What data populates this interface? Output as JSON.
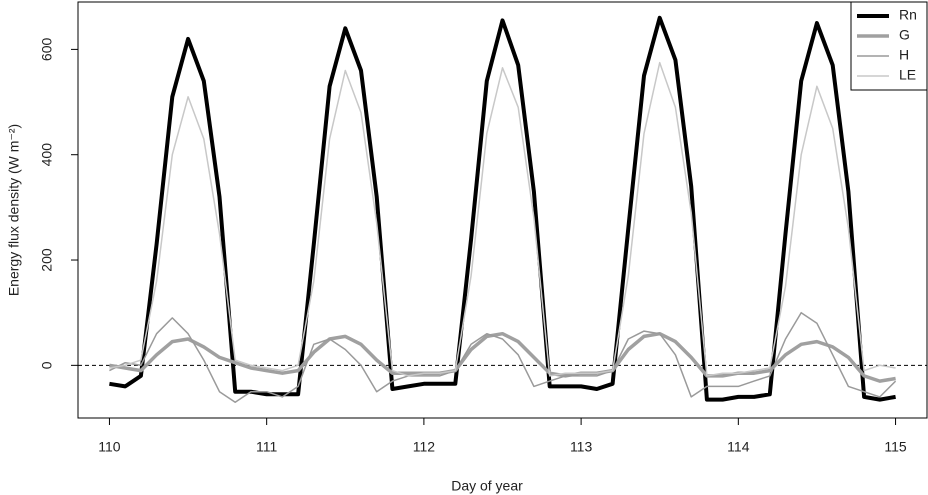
{
  "chart_data": {
    "type": "line",
    "x_label": "Day of year",
    "y_label": "Energy flux density (W m⁻²)",
    "x": [
      110.0,
      110.1,
      110.2,
      110.3,
      110.4,
      110.5,
      110.6,
      110.7,
      110.8,
      110.9,
      111.0,
      111.1,
      111.2,
      111.3,
      111.4,
      111.5,
      111.6,
      111.7,
      111.8,
      111.9,
      112.0,
      112.1,
      112.2,
      112.3,
      112.4,
      112.5,
      112.6,
      112.7,
      112.8,
      112.9,
      113.0,
      113.1,
      113.2,
      113.3,
      113.4,
      113.5,
      113.6,
      113.7,
      113.8,
      113.9,
      114.0,
      114.1,
      114.2,
      114.3,
      114.4,
      114.5,
      114.6,
      114.7,
      114.8,
      114.9,
      115.0
    ],
    "series": [
      {
        "name": "Rn",
        "color": "#000000",
        "values": [
          -35,
          -40,
          -20,
          230,
          510,
          620,
          540,
          320,
          -50,
          -50,
          -55,
          -55,
          -55,
          230,
          530,
          640,
          560,
          320,
          -45,
          -40,
          -35,
          -35,
          -35,
          240,
          540,
          655,
          570,
          330,
          -40,
          -40,
          -40,
          -45,
          -35,
          260,
          550,
          660,
          580,
          340,
          -65,
          -65,
          -60,
          -60,
          -55,
          250,
          540,
          650,
          570,
          330,
          -60,
          -65,
          -60
        ]
      },
      {
        "name": "G",
        "color": "#a0a0a0",
        "values": [
          0,
          -5,
          -10,
          20,
          45,
          50,
          35,
          15,
          5,
          -5,
          -10,
          -15,
          -10,
          25,
          50,
          55,
          40,
          10,
          -15,
          -15,
          -15,
          -15,
          -10,
          30,
          55,
          60,
          45,
          15,
          -15,
          -20,
          -15,
          -15,
          -10,
          30,
          55,
          60,
          45,
          15,
          -20,
          -20,
          -15,
          -15,
          -10,
          20,
          40,
          45,
          35,
          15,
          -20,
          -30,
          -25
        ]
      },
      {
        "name": "H",
        "color": "#9a9a9a",
        "values": [
          -10,
          5,
          0,
          60,
          90,
          60,
          10,
          -50,
          -70,
          -50,
          -50,
          -60,
          -40,
          40,
          50,
          30,
          0,
          -50,
          -30,
          -20,
          -20,
          -20,
          -10,
          40,
          60,
          50,
          20,
          -40,
          -30,
          -20,
          -20,
          -20,
          -10,
          50,
          65,
          60,
          20,
          -60,
          -40,
          -40,
          -40,
          -30,
          -20,
          50,
          100,
          80,
          20,
          -40,
          -50,
          -60,
          -30
        ]
      },
      {
        "name": "LE",
        "color": "#c8c8c8",
        "values": [
          -5,
          0,
          10,
          160,
          400,
          510,
          430,
          250,
          10,
          0,
          -5,
          -10,
          0,
          160,
          430,
          560,
          480,
          270,
          -10,
          -20,
          -15,
          -15,
          -10,
          170,
          440,
          565,
          490,
          280,
          -20,
          -15,
          -15,
          -15,
          -10,
          170,
          440,
          575,
          490,
          290,
          -20,
          -15,
          -15,
          -10,
          -5,
          150,
          400,
          530,
          450,
          260,
          -10,
          0,
          -5
        ]
      }
    ],
    "xlim": [
      109.8,
      115.2
    ],
    "xticks": [
      110,
      111,
      112,
      113,
      114,
      115
    ],
    "ylim": [
      -100,
      690
    ],
    "yticks": [
      0,
      200,
      400,
      600
    ],
    "hline": 0,
    "legend": "top-right"
  }
}
